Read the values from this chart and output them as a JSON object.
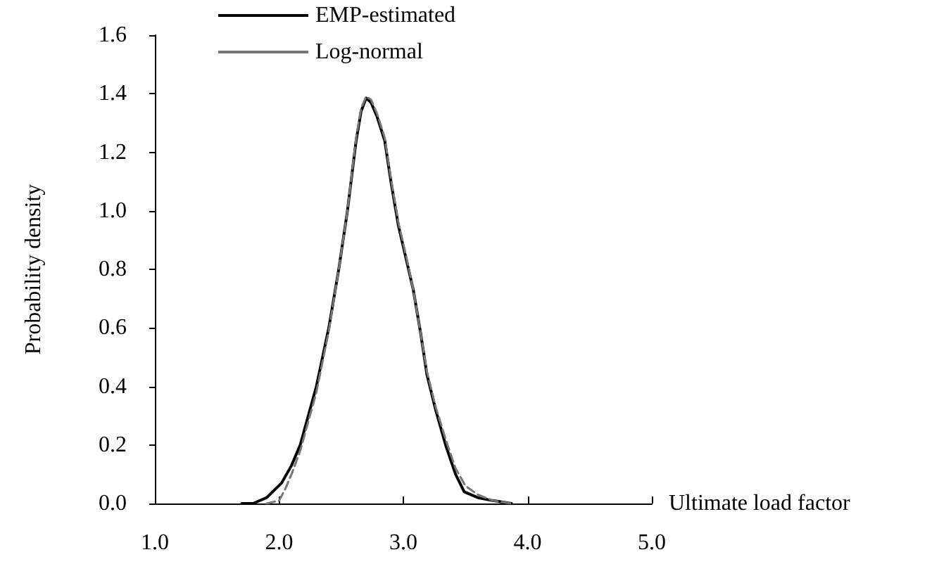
{
  "chart_data": {
    "type": "line",
    "xlabel": "Ultimate load factor",
    "ylabel": "Probability density",
    "xlim": [
      1.0,
      5.0
    ],
    "xticks": [
      {
        "value": 1,
        "label": "1.0"
      },
      {
        "value": 2,
        "label": "2.0"
      },
      {
        "value": 3,
        "label": "3.0"
      },
      {
        "value": 4,
        "label": "4.0"
      },
      {
        "value": 5,
        "label": "5.0"
      }
    ],
    "ylim": [
      0,
      1.6
    ],
    "yticks": [
      {
        "value": 0,
        "label": "0.0"
      },
      {
        "value": 0.2,
        "label": "0.2"
      },
      {
        "value": 0.4,
        "label": "0.4"
      },
      {
        "value": 0.6,
        "label": "0.6"
      },
      {
        "value": 0.8,
        "label": "0.8"
      },
      {
        "value": 1.0,
        "label": "1.0"
      },
      {
        "value": 1.2,
        "label": "1.2"
      },
      {
        "value": 1.4,
        "label": "1.4"
      },
      {
        "value": 1.6,
        "label": "1.6"
      }
    ],
    "grid": false,
    "legend": "top left",
    "marker": "none",
    "series": [
      {
        "name": "EMP-estimated",
        "color": "#000000",
        "line_style": "solid",
        "x": [
          1.7,
          1.79,
          1.9,
          2.02,
          2.1,
          2.17,
          2.3,
          2.4,
          2.48,
          2.55,
          2.62,
          2.66,
          2.7,
          2.74,
          2.79,
          2.85,
          2.9,
          2.96,
          3.02,
          3.08,
          3.14,
          3.19,
          3.26,
          3.34,
          3.42,
          3.49,
          3.6,
          3.72,
          3.87
        ],
        "values": [
          0,
          0,
          0.02,
          0.07,
          0.13,
          0.2,
          0.4,
          0.6,
          0.8,
          1.0,
          1.24,
          1.34,
          1.385,
          1.37,
          1.32,
          1.24,
          1.1,
          0.95,
          0.84,
          0.73,
          0.58,
          0.44,
          0.32,
          0.2,
          0.1,
          0.04,
          0.02,
          0.01,
          0
        ]
      },
      {
        "name": "Log-normal",
        "color": "#777777",
        "line_style": "dashed",
        "x": [
          1.9,
          2.0,
          2.05,
          2.1,
          2.17,
          2.3,
          2.4,
          2.48,
          2.55,
          2.62,
          2.66,
          2.7,
          2.74,
          2.79,
          2.85,
          2.9,
          2.96,
          3.02,
          3.08,
          3.14,
          3.19,
          3.26,
          3.34,
          3.42,
          3.5,
          3.6,
          3.72,
          3.87
        ],
        "values": [
          0,
          0.01,
          0.05,
          0.1,
          0.18,
          0.38,
          0.59,
          0.8,
          1.0,
          1.25,
          1.35,
          1.39,
          1.38,
          1.33,
          1.25,
          1.11,
          0.96,
          0.85,
          0.73,
          0.58,
          0.45,
          0.33,
          0.22,
          0.12,
          0.06,
          0.03,
          0.01,
          0
        ]
      }
    ]
  }
}
